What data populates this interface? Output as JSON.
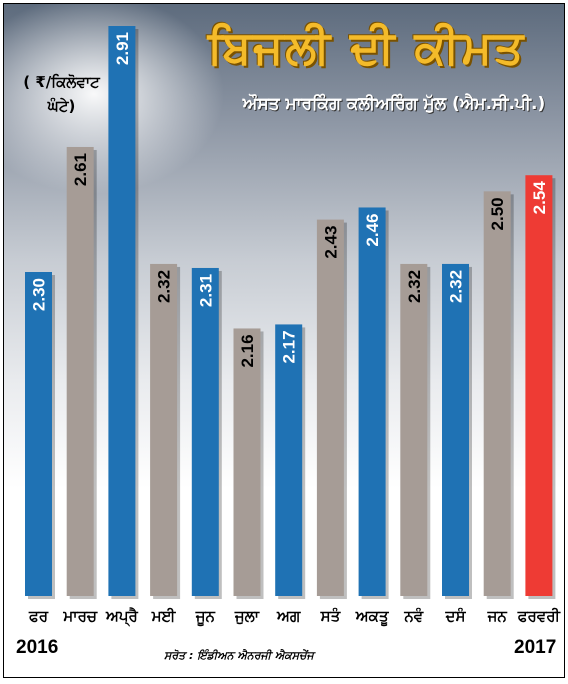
{
  "title": "ਬਿਜਲੀ ਦੀ ਕੀਮਤ",
  "subtitle": "ਔਸਤ ਮਾਰਕਿੰਗ ਕਲੀਅਰਿੰਗ ਮੁੱਲ (ਐਮ.ਸੀ.ਪੀ.)",
  "unit_label": "( ₹/ਕਿਲੋਵਾਟ ਘੰਟੇ)",
  "year_start": "2016",
  "year_end": "2017",
  "source": "ਸਰੋਤ : ਇੰਡੀਅਨ ਐਨਰਜੀ ਐਕਸਚੇਂਜ",
  "colors": {
    "blue": "#1f72b4",
    "gray": "#a69c96",
    "red": "#ee3b34",
    "title": "#f4bb2a"
  },
  "chart_data": {
    "type": "bar",
    "title": "ਬਿਜਲੀ ਦੀ ਕੀਮਤ",
    "ylabel": "( ₹/ਕਿਲੋਵਾਟ ਘੰਟੇ)",
    "categories": [
      "ਫਰ",
      "ਮਾਰਚ",
      "ਅਪ੍ਰੈ",
      "ਮਈ",
      "ਜੂਨ",
      "ਜੁਲਾ",
      "ਅਗ",
      "ਸਤੰ",
      "ਅਕਤੂ",
      "ਨਵੰ",
      "ਦਸੰ",
      "ਜਨ",
      "ਫਰਵਰੀ"
    ],
    "values": [
      2.3,
      2.61,
      2.91,
      2.32,
      2.31,
      2.16,
      2.17,
      2.43,
      2.46,
      2.32,
      2.32,
      2.5,
      2.54
    ],
    "value_labels": [
      "2.30",
      "2.61",
      "2.91",
      "2.32",
      "2.31",
      "2.16",
      "2.17",
      "2.43",
      "2.46",
      "2.32",
      "2.32",
      "2.50",
      "2.54"
    ],
    "bar_colors": [
      "blue",
      "gray",
      "blue",
      "gray",
      "blue",
      "gray",
      "blue",
      "gray",
      "blue",
      "gray",
      "blue",
      "gray",
      "red"
    ],
    "grid": false,
    "legend": "none"
  }
}
